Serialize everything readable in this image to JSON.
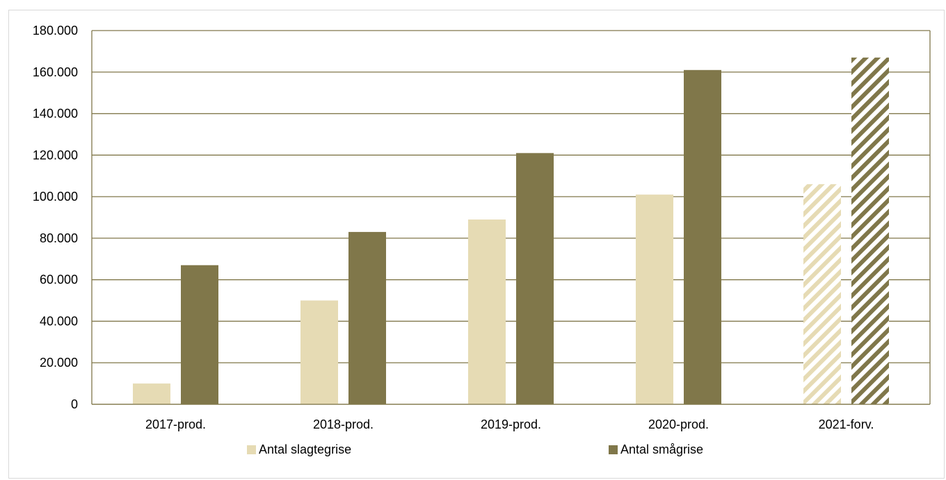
{
  "chart_data": {
    "type": "bar",
    "categories": [
      "2017-prod.",
      "2018-prod.",
      "2019-prod.",
      "2020-prod.",
      "2021-forv."
    ],
    "series": [
      {
        "name": "Antal slagtegrise",
        "values": [
          10000,
          50000,
          89000,
          101000,
          106000
        ],
        "color": "#e6dbb4"
      },
      {
        "name": "Antal smågrise",
        "values": [
          67000,
          83000,
          121000,
          161000,
          167000
        ],
        "color": "#80774a"
      }
    ],
    "hatched_categories": [
      "2021-forv."
    ],
    "ylim": [
      0,
      180000
    ],
    "y_ticks": [
      {
        "value": 0,
        "label": "0"
      },
      {
        "value": 20000,
        "label": "20.000"
      },
      {
        "value": 40000,
        "label": "40.000"
      },
      {
        "value": 60000,
        "label": "60.000"
      },
      {
        "value": 80000,
        "label": "80.000"
      },
      {
        "value": 100000,
        "label": "100.000"
      },
      {
        "value": 120000,
        "label": "120.000"
      },
      {
        "value": 140000,
        "label": "140.000"
      },
      {
        "value": 160000,
        "label": "160.000"
      },
      {
        "value": 180000,
        "label": "180.000"
      }
    ],
    "grid": true,
    "grid_color": "#80774a",
    "legend_position": "bottom",
    "title": "",
    "xlabel": "",
    "ylabel": ""
  }
}
